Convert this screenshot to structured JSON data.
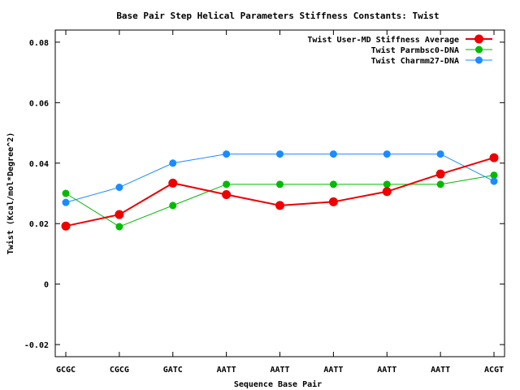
{
  "chart_data": {
    "type": "line",
    "title": "Base Pair Step Helical Parameters Stiffness Constants: Twist",
    "xlabel": "Sequence Base Pair",
    "ylabel": "Twist (Kcal/mol*Degree^2)",
    "categories": [
      "GCGC",
      "CGCG",
      "GATC",
      "AATT",
      "AATT",
      "AATT",
      "AATT",
      "AATT",
      "ACGT"
    ],
    "ylim": [
      -0.024,
      0.084
    ],
    "yticks": [
      -0.02,
      0,
      0.02,
      0.04,
      0.06,
      0.08
    ],
    "ytick_labels": [
      "-0.02",
      "0",
      "0.02",
      "0.04",
      "0.06",
      "0.08"
    ],
    "legend_position": "top-right",
    "grid": false,
    "series": [
      {
        "name": "Twist User-MD Stiffness Average",
        "color": "#ee0000",
        "values": [
          0.0192,
          0.023,
          0.0334,
          0.0296,
          0.026,
          0.0272,
          0.0306,
          0.0364,
          0.0418
        ]
      },
      {
        "name": "Twist Parmbsc0-DNA",
        "color": "#00bb00",
        "values": [
          0.03,
          0.019,
          0.026,
          0.033,
          0.033,
          0.033,
          0.033,
          0.033,
          0.036
        ]
      },
      {
        "name": "Twist Charmm27-DNA",
        "color": "#1a8cff",
        "values": [
          0.027,
          0.032,
          0.04,
          0.043,
          0.043,
          0.043,
          0.043,
          0.043,
          0.034
        ]
      }
    ]
  }
}
